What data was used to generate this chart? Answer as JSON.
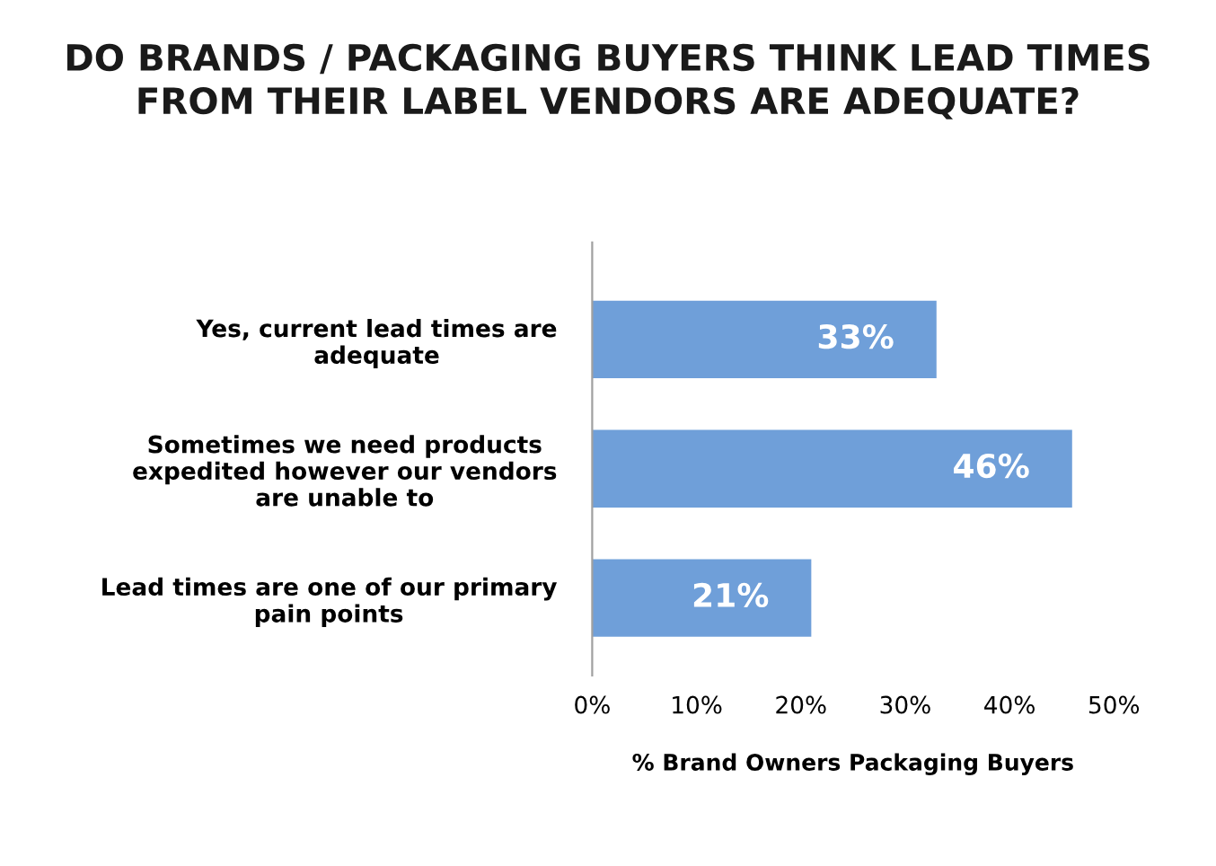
{
  "chart_data": {
    "type": "bar",
    "orientation": "horizontal",
    "title": "DO BRANDS / PACKAGING BUYERS THINK LEAD TIMES\nFROM THEIR LABEL VENDORS ARE ADEQUATE?",
    "xlabel": "% Brand Owners Packaging Buyers",
    "categories": [
      "Yes, current lead times are\nadequate",
      "Sometimes we need products\nexpedited however our vendors\nare unable to",
      "Lead times are one of our primary\npain points"
    ],
    "values": [
      33,
      46,
      21
    ],
    "value_labels": [
      "33%",
      "46%",
      "21%"
    ],
    "color": "#6f9fd9",
    "xlim": [
      0,
      50
    ],
    "xticks": [
      {
        "value": 0,
        "label": "0%"
      },
      {
        "value": 10,
        "label": "10%"
      },
      {
        "value": 20,
        "label": "20%"
      },
      {
        "value": 30,
        "label": "30%"
      },
      {
        "value": 40,
        "label": "40%"
      },
      {
        "value": 50,
        "label": "50%"
      }
    ],
    "grid": false,
    "legend": false
  }
}
